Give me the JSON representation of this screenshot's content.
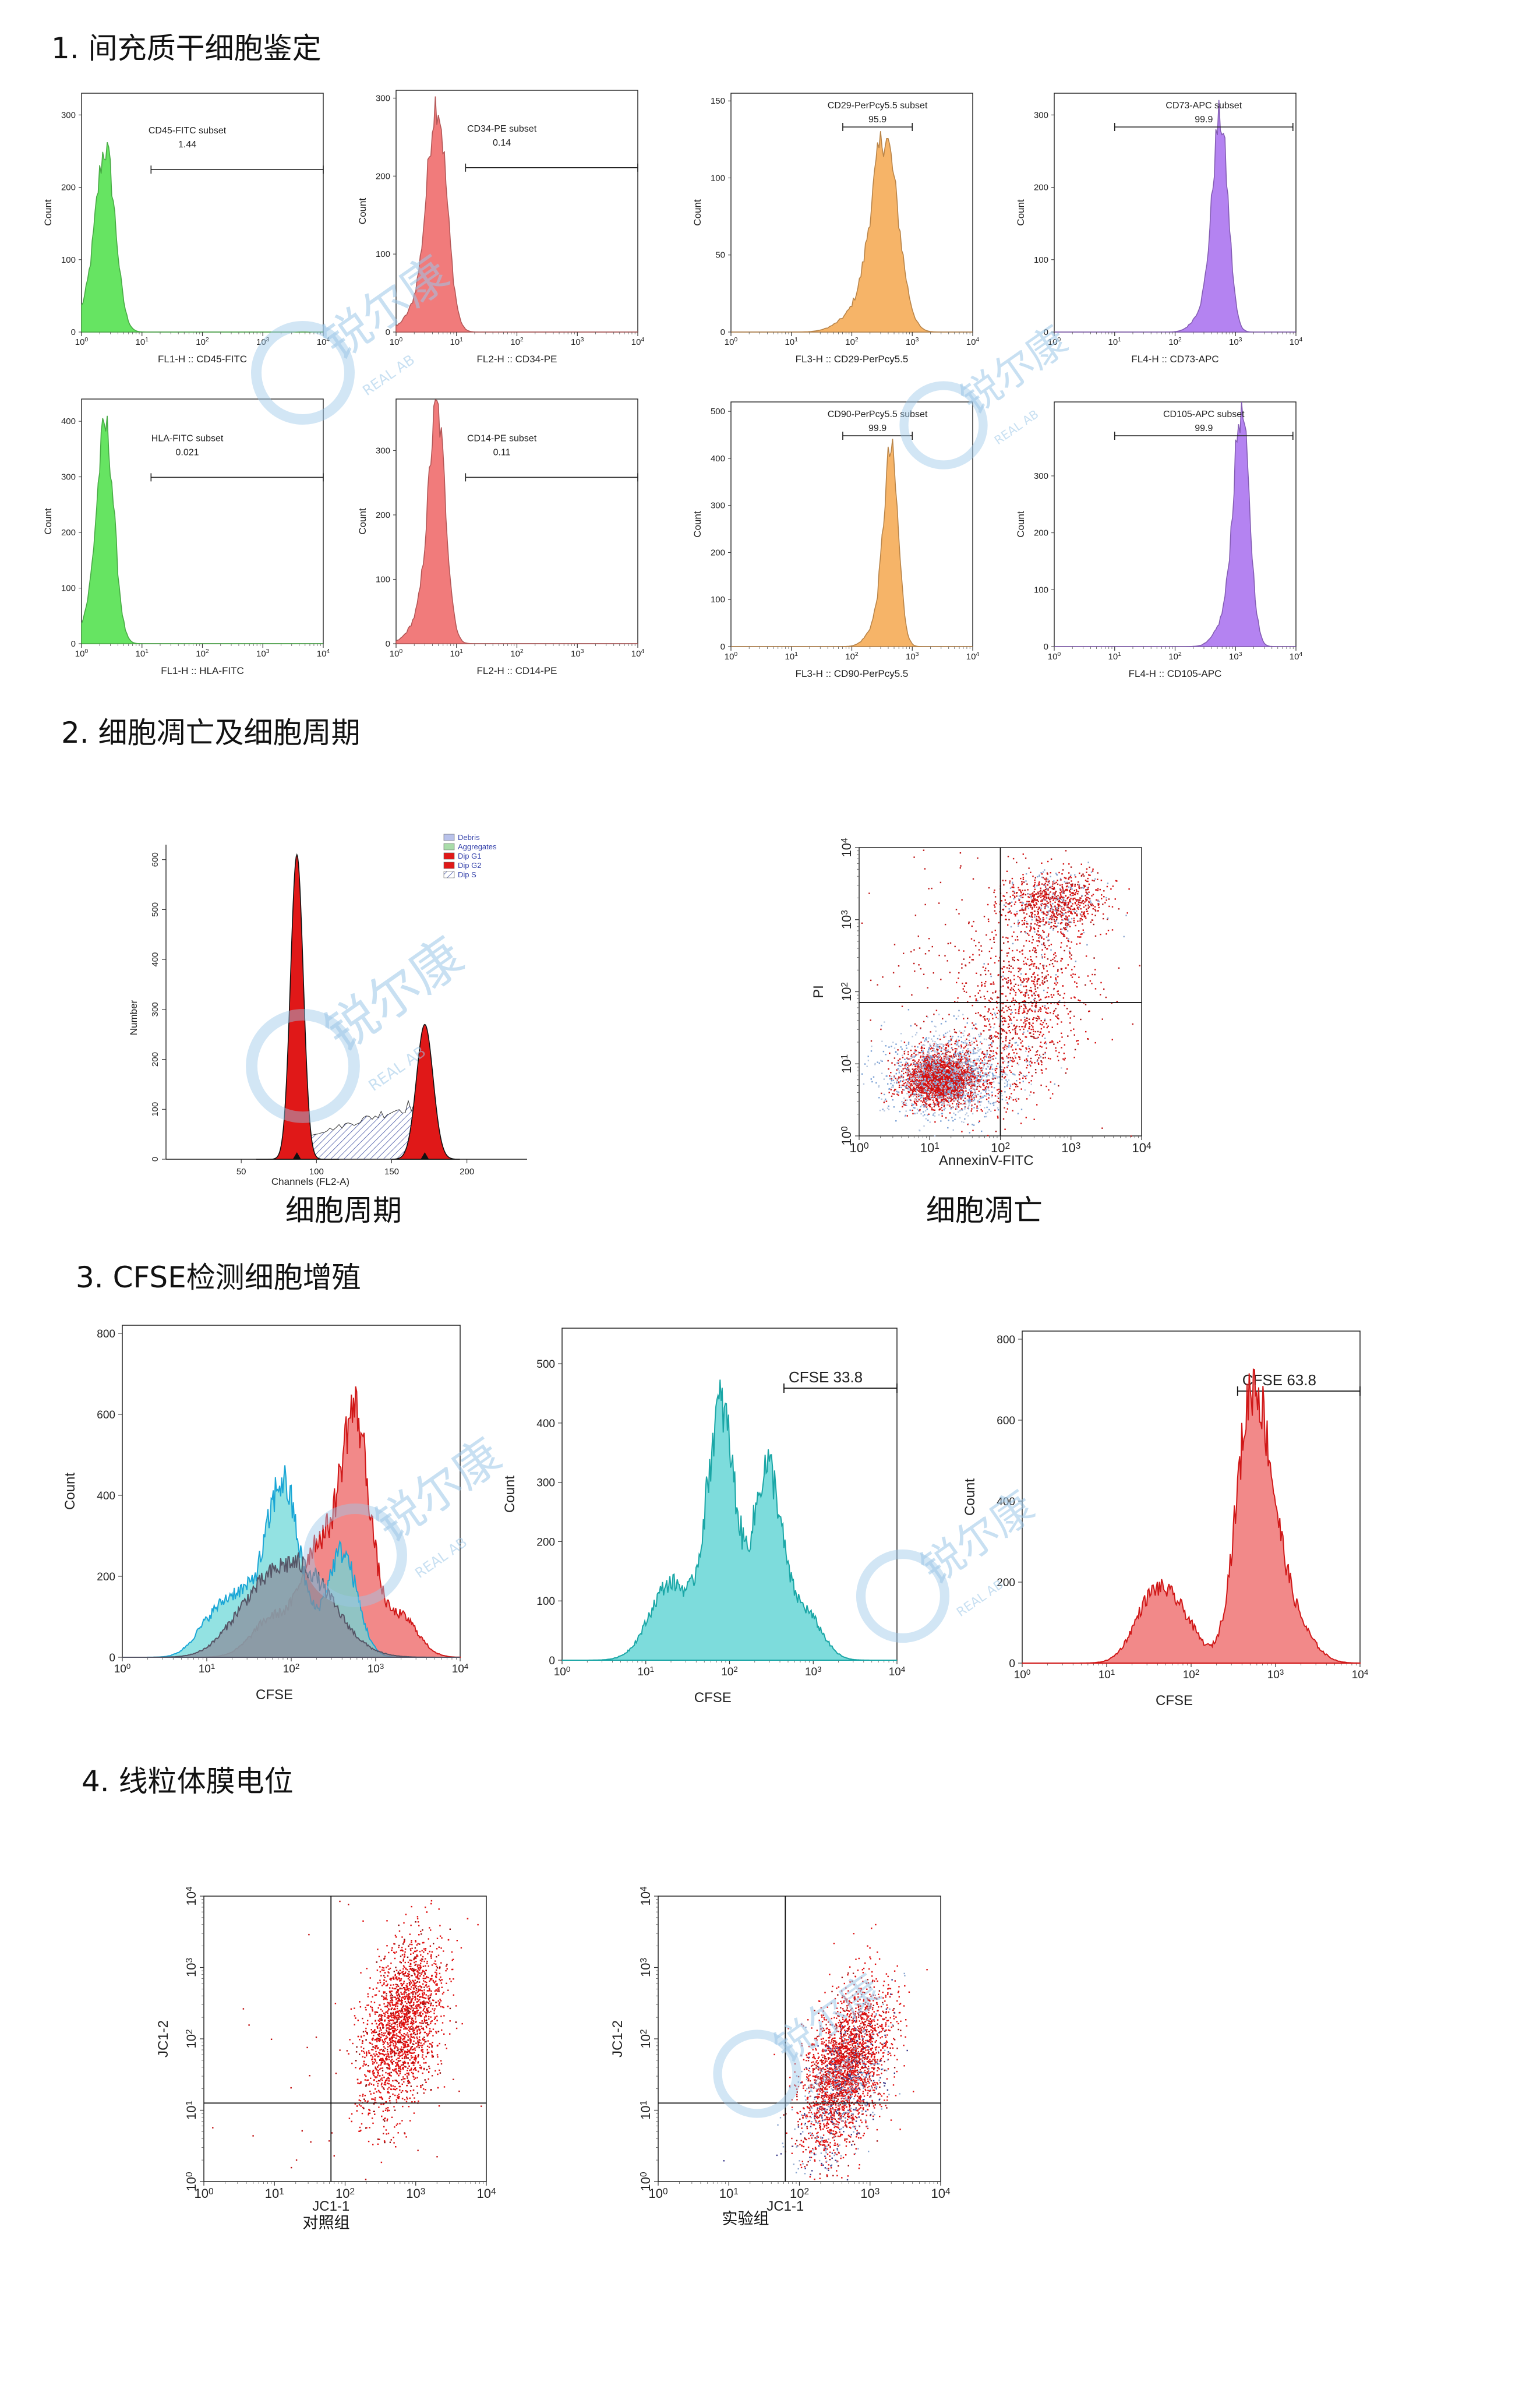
{
  "sections": {
    "s1": "1. 间充质干细胞鉴定",
    "s2": "2. 细胞凋亡及细胞周期",
    "s3": "3. CFSE检测细胞增殖",
    "s4": "4. 线粒体膜电位"
  },
  "captions": {
    "cell_cycle": "细胞周期",
    "apoptosis": "细胞凋亡",
    "control": "对照组",
    "experiment": "实验组"
  },
  "watermark": {
    "cn": "锐尔康",
    "en": "REAL AB"
  },
  "colors": {
    "green": "#5ee35a",
    "red": "#f07474",
    "orange": "#f6b060",
    "purple": "#b07cf0",
    "cyan": "#6fd8d8",
    "dark_red": "#d01010",
    "blue_grey": "#8aa6cf"
  },
  "chart_data": [
    {
      "id": "cd45",
      "type": "histogram",
      "color": "green",
      "xlabel": "FL1-H :: CD45-FITC",
      "ylabel": "Count",
      "yticks": [
        "0",
        "100",
        "200",
        "300"
      ],
      "ymax": 330,
      "gate_label": "CD45-FITC subset",
      "gate_value": "1.44",
      "gate_range": [
        1.15,
        4.0
      ],
      "peak_log": 0.4,
      "peak_sd": 0.16,
      "peak_height": 240
    },
    {
      "id": "cd34",
      "type": "histogram",
      "color": "red",
      "xlabel": "FL2-H :: CD34-PE",
      "ylabel": "Count",
      "yticks": [
        "0",
        "100",
        "200",
        "300"
      ],
      "ymax": 310,
      "gate_label": "CD34-PE subset",
      "gate_value": "0.14",
      "gate_range": [
        1.15,
        4.0
      ],
      "peak_log": 0.68,
      "peak_sd": 0.16,
      "peak_height": 280
    },
    {
      "id": "cd29",
      "type": "histogram",
      "color": "orange",
      "xlabel": "FL3-H :: CD29-PerPcy5.5",
      "ylabel": "Count",
      "yticks": [
        "0",
        "50",
        "100",
        "150"
      ],
      "ymax": 155,
      "gate_label": "CD29-PerPcy5.5 subset",
      "gate_value": "95.9",
      "gate_range": [
        1.85,
        3.0
      ],
      "peak_log": 2.55,
      "peak_sd": 0.22,
      "peak_height": 120
    },
    {
      "id": "cd73",
      "type": "histogram",
      "color": "purple",
      "xlabel": "FL4-H :: CD73-APC",
      "ylabel": "Count",
      "yticks": [
        "0",
        "100",
        "200",
        "300"
      ],
      "ymax": 330,
      "gate_label": "CD73-APC subset",
      "gate_value": "99.9",
      "gate_range": [
        1.0,
        3.95
      ],
      "peak_log": 2.75,
      "peak_sd": 0.13,
      "peak_height": 280
    },
    {
      "id": "hla",
      "type": "histogram",
      "color": "green",
      "xlabel": "FL1-H :: HLA-FITC",
      "ylabel": "Count",
      "yticks": [
        "0",
        "100",
        "200",
        "300",
        "400"
      ],
      "ymax": 440,
      "gate_label": "HLA-FITC subset",
      "gate_value": "0.021",
      "gate_range": [
        1.15,
        4.0
      ],
      "peak_log": 0.4,
      "peak_sd": 0.14,
      "peak_height": 370
    },
    {
      "id": "cd14",
      "type": "histogram",
      "color": "red",
      "xlabel": "FL2-H :: CD14-PE",
      "ylabel": "Count",
      "yticks": [
        "0",
        "100",
        "200",
        "300"
      ],
      "ymax": 380,
      "gate_label": "CD14-PE subset",
      "gate_value": "0.11",
      "gate_range": [
        1.15,
        4.0
      ],
      "peak_log": 0.68,
      "peak_sd": 0.14,
      "peak_height": 345
    },
    {
      "id": "cd90",
      "type": "histogram",
      "color": "orange",
      "xlabel": "FL3-H :: CD90-PerPcy5.5",
      "ylabel": "Count",
      "yticks": [
        "0",
        "100",
        "200",
        "300",
        "400",
        "500"
      ],
      "ymax": 520,
      "gate_label": "CD90-PerPcy5.5 subset",
      "gate_value": "99.9",
      "gate_range": [
        1.85,
        3.0
      ],
      "peak_log": 2.65,
      "peak_sd": 0.12,
      "peak_height": 395
    },
    {
      "id": "cd105",
      "type": "histogram",
      "color": "purple",
      "xlabel": "FL4-H :: CD105-APC",
      "ylabel": "Count",
      "yticks": [
        "0",
        "100",
        "200",
        "300"
      ],
      "ymax": 430,
      "gate_label": "CD105-APC subset",
      "gate_value": "99.9",
      "gate_range": [
        1.0,
        3.95
      ],
      "peak_log": 3.1,
      "peak_sd": 0.13,
      "peak_height": 395
    },
    {
      "id": "cellcycle",
      "type": "area",
      "xlabel": "Channels (FL2-A)",
      "ylabel": "Number",
      "xticks": [
        "50",
        "100",
        "150",
        "200"
      ],
      "yticks": [
        "0",
        "100",
        "200",
        "300",
        "400",
        "500",
        "600"
      ],
      "legend": [
        "Debris",
        "Aggregates",
        "Dip G1",
        "Dip G2",
        "Dip S"
      ],
      "g1_peak": [
        87,
        610
      ],
      "g2_peak": [
        172,
        270
      ]
    },
    {
      "id": "apoptosis",
      "type": "scatter",
      "xlabel": "AnnexinV-FITC",
      "ylabel": "PI",
      "quadrant": [
        2.0,
        1.85
      ]
    },
    {
      "id": "cfse_overlay",
      "type": "histogram",
      "xlabel": "CFSE",
      "ylabel": "Count",
      "yticks": [
        "0",
        "200",
        "400",
        "600",
        "800"
      ],
      "ymax": 820
    },
    {
      "id": "cfse_cyan",
      "type": "histogram",
      "xlabel": "CFSE",
      "ylabel": "Count",
      "yticks": [
        "0",
        "100",
        "200",
        "300",
        "400",
        "500"
      ],
      "ymax": 560,
      "gate_label": "CFSE",
      "gate_value": "33.8",
      "gate_range": [
        2.65,
        4.0
      ]
    },
    {
      "id": "cfse_red",
      "type": "histogram",
      "xlabel": "CFSE",
      "ylabel": "Count",
      "yticks": [
        "0",
        "200",
        "400",
        "600",
        "800"
      ],
      "ymax": 820,
      "gate_label": "CFSE",
      "gate_value": "63.8",
      "gate_range": [
        2.55,
        4.0
      ]
    },
    {
      "id": "jc1_control",
      "type": "scatter",
      "xlabel": "JC1-1",
      "ylabel": "JC1-2",
      "quadrant": [
        1.8,
        1.1
      ]
    },
    {
      "id": "jc1_experiment",
      "type": "scatter",
      "xlabel": "JC1-1",
      "ylabel": "JC1-2",
      "quadrant": [
        1.8,
        1.1
      ]
    }
  ]
}
